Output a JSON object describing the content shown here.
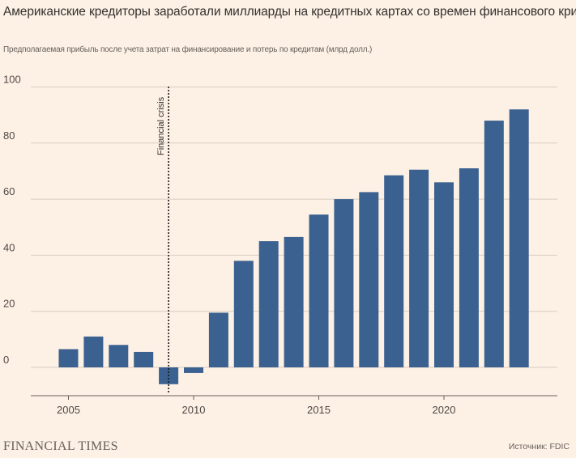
{
  "header": {
    "title": "Американские кредиторы заработали миллиарды на кредитных картах со времен финансового кризиса",
    "subtitle": "Предполагаемая прибыль после учета затрат на финансирование и потерь по кредитам (млрд долл.)"
  },
  "footer": {
    "brand": "FINANCIAL TIMES",
    "source": "Источник: FDIC"
  },
  "colors": {
    "background": "#fdf1e5",
    "bar": "#3b6190",
    "grid": "#d9cdc2",
    "axis": "#66605c"
  },
  "chart_data": {
    "type": "bar",
    "title": "Американские кредиторы заработали миллиарды на кредитных картах со времен финансового кризиса",
    "subtitle": "Предполагаемая прибыль после учета затрат на финансирование и потерь по кредитам (млрд долл.)",
    "categories": [
      2005,
      2006,
      2007,
      2008,
      2009,
      2010,
      2011,
      2012,
      2013,
      2014,
      2015,
      2016,
      2017,
      2018,
      2019,
      2020,
      2021,
      2022,
      2023
    ],
    "values": [
      6.5,
      11,
      8,
      5.5,
      -6,
      -2,
      19.5,
      38,
      45,
      46.5,
      54.5,
      60,
      62.5,
      68.5,
      70.5,
      66,
      71,
      88,
      92
    ],
    "ylim": [
      -10,
      100
    ],
    "yticks": [
      0,
      20,
      40,
      60,
      80,
      100
    ],
    "xticks": [
      2005,
      2010,
      2015,
      2020
    ],
    "xlim": [
      2004,
      2024
    ],
    "grid": true,
    "annotation": {
      "label": "Financial crisis",
      "x": 2009
    }
  }
}
